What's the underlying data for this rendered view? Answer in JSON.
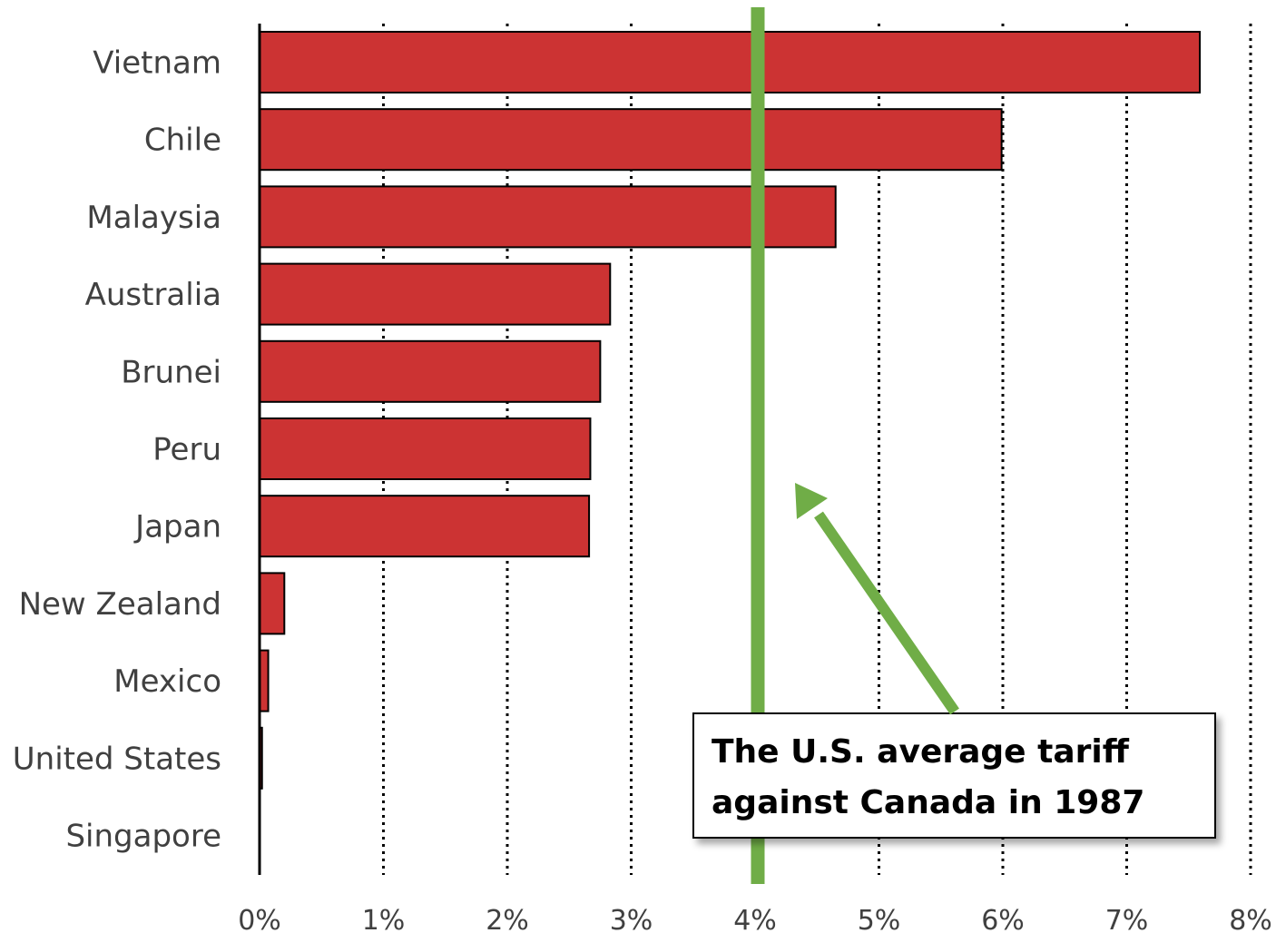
{
  "chart_data": {
    "type": "bar",
    "orientation": "horizontal",
    "categories": [
      "Vietnam",
      "Chile",
      "Malaysia",
      "Australia",
      "Brunei",
      "Peru",
      "Japan",
      "New Zealand",
      "Mexico",
      "United States",
      "Singapore"
    ],
    "values": [
      7.59,
      5.99,
      4.65,
      2.83,
      2.75,
      2.67,
      2.66,
      0.2,
      0.07,
      0.02,
      0.0
    ],
    "unit": "%",
    "xlim": [
      0,
      8
    ],
    "xticks": [
      "0%",
      "1%",
      "2%",
      "3%",
      "4%",
      "5%",
      "6%",
      "7%",
      "8%"
    ],
    "grid": "vertical dotted",
    "bar_color": "#cc3333",
    "reference_line": {
      "value": 4.0,
      "color": "#70ad47"
    },
    "annotation": {
      "lines": [
        "The U.S. average tariff",
        "against Canada in 1987"
      ],
      "arrow_color": "#70ad47"
    }
  }
}
